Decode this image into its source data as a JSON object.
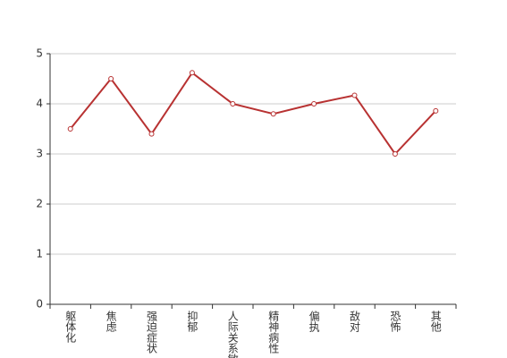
{
  "chart_data": {
    "type": "line",
    "categories": [
      "躯体化",
      "焦虑",
      "强迫症状",
      "抑郁",
      "人际关系敏感",
      "精神病性",
      "偏执",
      "敌对",
      "恐怖",
      "其他"
    ],
    "series": [
      {
        "color": "#b83232",
        "values": [
          3.5,
          4.5,
          3.4,
          4.62,
          4.0,
          3.8,
          4.0,
          4.17,
          3.0,
          3.86
        ]
      }
    ],
    "ylim": [
      0,
      5
    ],
    "yticks": [
      0,
      1,
      2,
      3,
      4,
      5
    ],
    "grid": true
  }
}
